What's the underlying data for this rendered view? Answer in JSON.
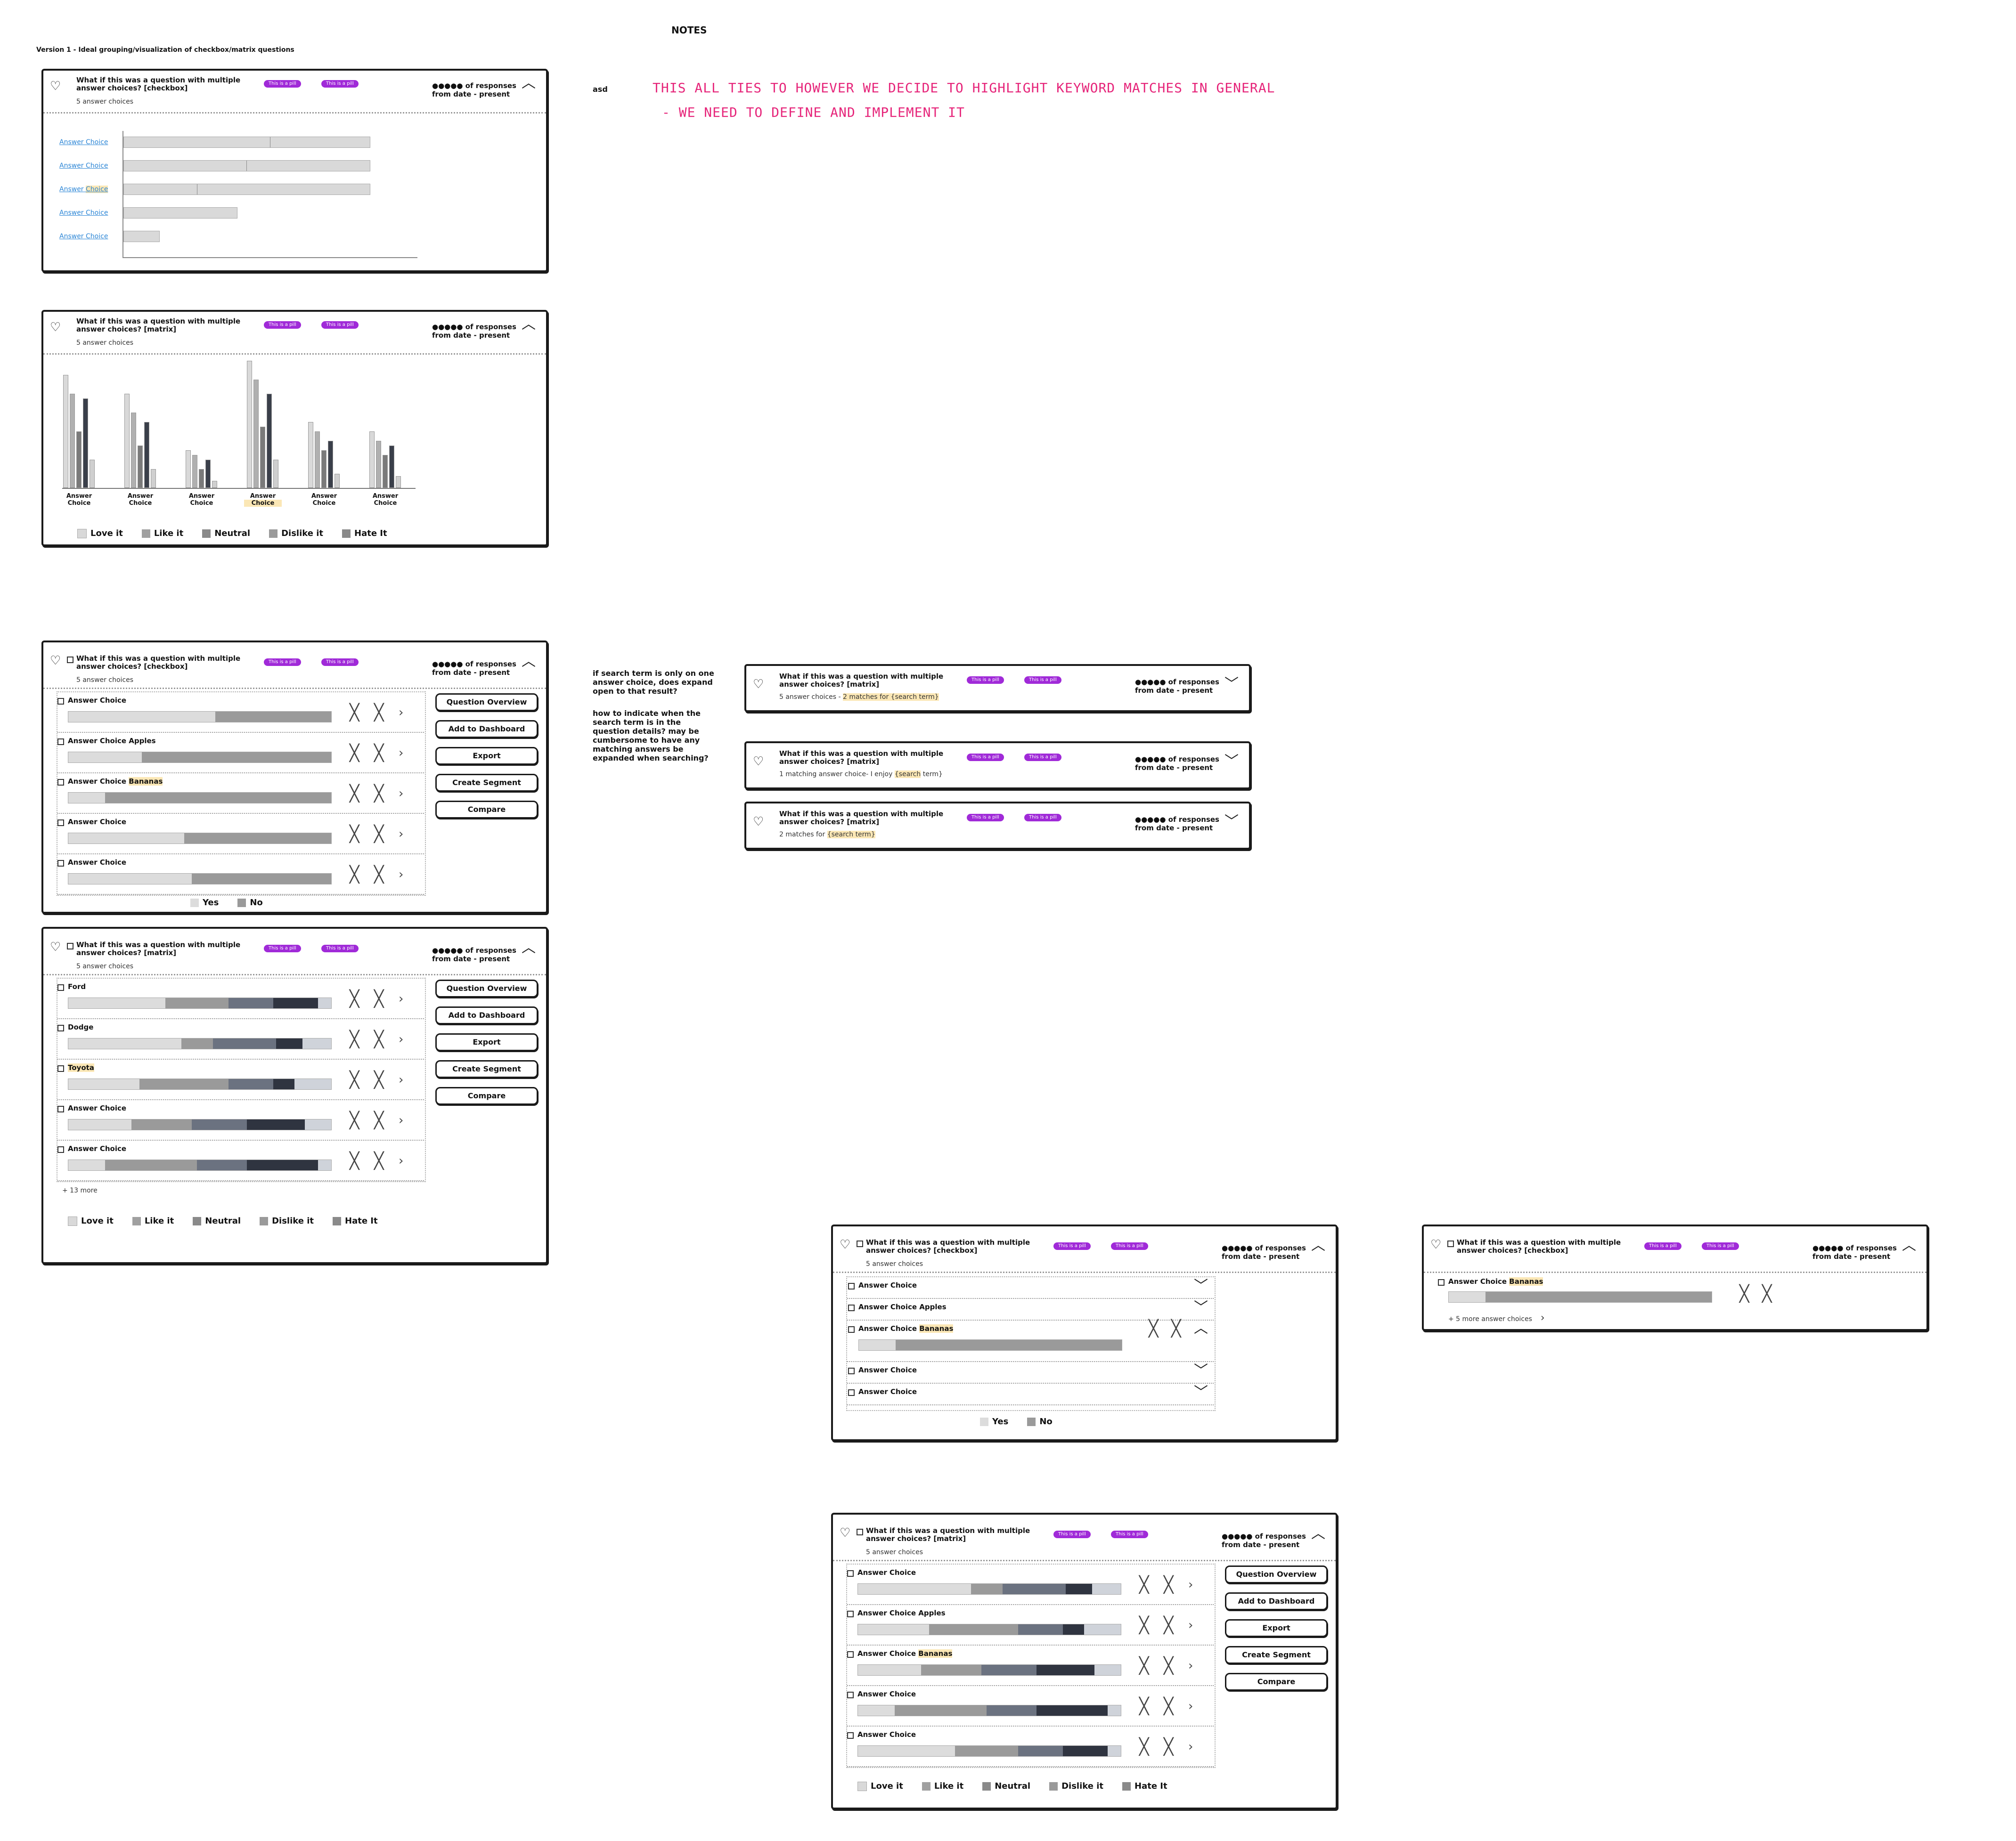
{
  "page": {
    "notes_title": "NOTES",
    "version_title": "Version 1 - Ideal grouping/visualization of checkbox/matrix questions",
    "asd": "asd",
    "pink_note_1": "THIS ALL TIES TO HOWEVER WE DECIDE TO HIGHLIGHT KEYWORD MATCHES IN GENERAL",
    "pink_note_2": "- WE NEED TO DEFINE AND IMPLEMENT IT",
    "note_search_1": "if search term is only on one answer choice, does expand open to that result?",
    "note_search_2": "how to indicate when the search term is in the question details? may be cumbersome to have any matching answers be expanded when searching?",
    "colors": {
      "pill": "#a02ad8",
      "highlight": "#fbe7b5",
      "link": "#2c86d6",
      "pink": "#e6257a"
    }
  },
  "common": {
    "q_checkbox": "What if this was a question with multiple answer choices? [checkbox]",
    "q_matrix": "What if this was a question with multiple answer choices? [matrix]",
    "sub": "5 answer choices",
    "pill": "This is a pill",
    "resp1": "●●●●● of responses",
    "resp2": "from date - present",
    "icons": {
      "heart": "heart-icon",
      "up": "chevron-up-icon",
      "down": "chevron-down-icon",
      "x": "close-icon",
      "next": "chevron-right-icon"
    }
  },
  "buttons": [
    "Question Overview",
    "Add to Dashboard",
    "Export",
    "Create Segment",
    "Compare"
  ],
  "yesno": [
    "Yes",
    "No"
  ],
  "sentiment": [
    "Love it",
    "Like it",
    "Neutral",
    "Dislike it",
    "Hate It"
  ],
  "card1": {
    "answers": [
      "Answer Choice",
      "Answer Choice",
      "Answer ",
      "Answer Choice",
      "Answer Choice"
    ],
    "answer3_hl": "Choice"
  },
  "card2": {
    "groups": [
      {
        "label1": "Answer",
        "label2": "Choice"
      },
      {
        "label1": "Answer",
        "label2": "Choice"
      },
      {
        "label1": "Answer",
        "label2": "Choice"
      },
      {
        "label1": "Answer",
        "label2": "Choice"
      },
      {
        "label1": "Answer",
        "label2": "Choice"
      },
      {
        "label1": "Answer",
        "label2": "Choice"
      }
    ]
  },
  "card3": {
    "rows": [
      "Answer Choice",
      "Answer Choice Apples",
      "Answer Choice ",
      "Answer Choice",
      "Answer Choice"
    ],
    "row3_hl": "Bananas"
  },
  "card4": {
    "rows": [
      "Ford",
      "Dodge",
      "",
      "Answer Choice",
      "Answer Choice"
    ],
    "row3_hl": "Toyota",
    "more": "+ 13 more"
  },
  "search_cards": [
    {
      "sub_pre": "5 answer choices - ",
      "sub_hl": "2 matches for {search term}",
      "sub_post": ""
    },
    {
      "sub_pre": "1 matching answer choice- I enjoy ",
      "sub_hl": "{search",
      "sub_post": " term}"
    },
    {
      "sub_pre": "2 matches for ",
      "sub_hl": "{search term}",
      "sub_post": ""
    }
  ],
  "card5": {
    "rows": [
      "Answer Choice",
      "Answer Choice Apples",
      "Answer Choice ",
      "Answer Choice",
      "Answer Choice"
    ],
    "row3_hl": "Bananas"
  },
  "card6": {
    "row_pre": "Answer Choice ",
    "row_hl": "Bananas",
    "more": "+ 5 more answer choices"
  },
  "card7": {
    "rows": [
      "Answer Choice",
      "Answer Choice Apples",
      "Answer Choice ",
      "Answer Choice",
      "Answer Choice"
    ],
    "row3_hl": "Bananas"
  }
}
